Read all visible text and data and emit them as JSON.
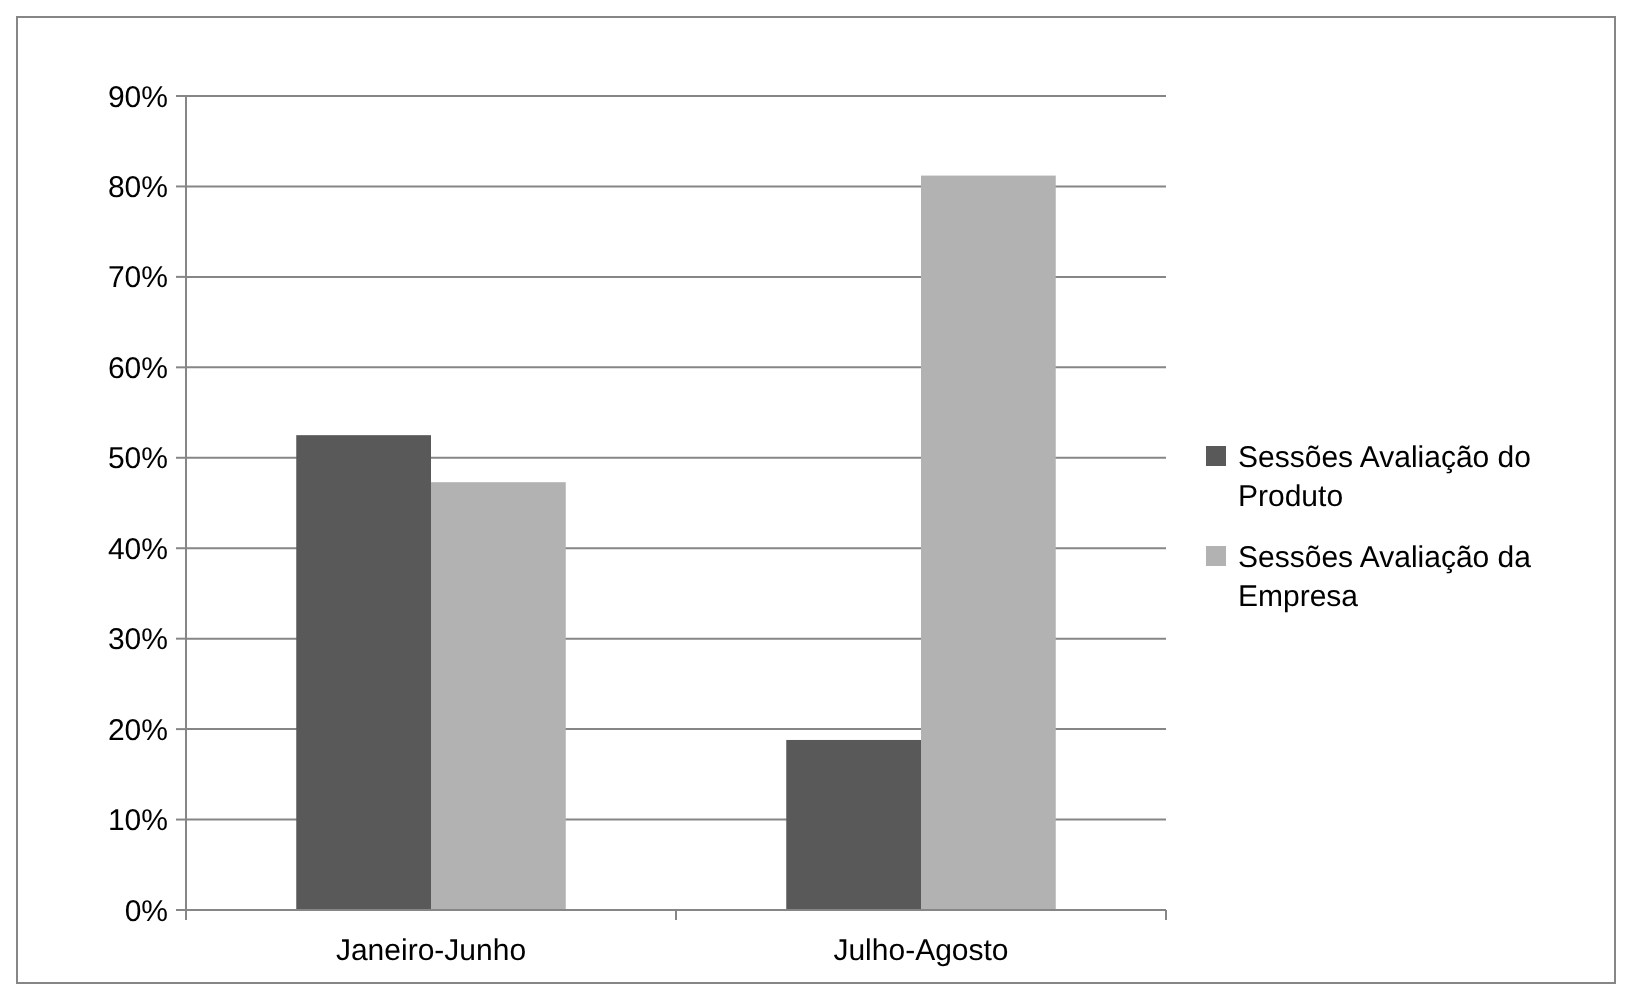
{
  "chart_data": {
    "type": "bar",
    "categories": [
      "Janeiro-Junho",
      "Julho-Agosto"
    ],
    "series": [
      {
        "name": "Sessões Avaliação do Produto",
        "color": "#595959",
        "values": [
          52.5,
          18.8
        ]
      },
      {
        "name": "Sessões Avaliação da Empresa",
        "color": "#b2b2b2",
        "values": [
          47.3,
          81.2
        ]
      }
    ],
    "ylim": [
      0,
      90
    ],
    "yticks": [
      {
        "value": 0,
        "label": "0%"
      },
      {
        "value": 10,
        "label": "10%"
      },
      {
        "value": 20,
        "label": "20%"
      },
      {
        "value": 30,
        "label": "30%"
      },
      {
        "value": 40,
        "label": "40%"
      },
      {
        "value": 50,
        "label": "50%"
      },
      {
        "value": 60,
        "label": "60%"
      },
      {
        "value": 70,
        "label": "70%"
      },
      {
        "value": 80,
        "label": "80%"
      },
      {
        "value": 90,
        "label": "90%"
      }
    ],
    "grid": "y",
    "legend": "right"
  }
}
